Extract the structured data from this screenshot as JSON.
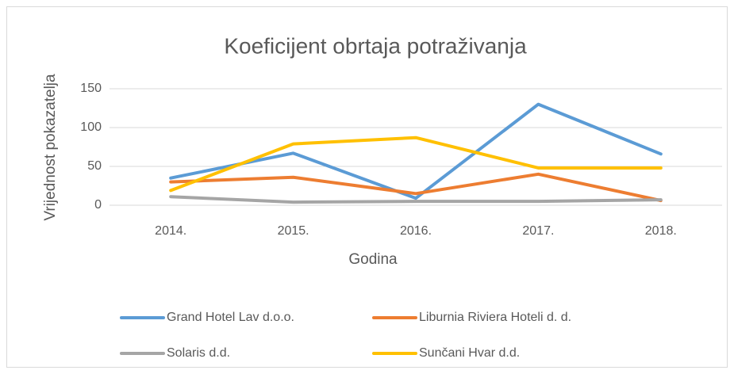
{
  "chart_data": {
    "type": "line",
    "title": "Koeficijent obrtaja potraživanja",
    "x_label": "Godina",
    "y_label": "Vrijednost pokazatelja",
    "categories": [
      "2014.",
      "2015.",
      "2016.",
      "2017.",
      "2018."
    ],
    "series": [
      {
        "name": "Grand Hotel Lav d.o.o.",
        "color": "#5b9bd5",
        "values": [
          35,
          67,
          9,
          130,
          66
        ]
      },
      {
        "name": "Liburnia Riviera Hoteli d. d.",
        "color": "#ed7d31",
        "values": [
          30,
          36,
          15,
          40,
          6
        ]
      },
      {
        "name": "Solaris d.d.",
        "color": "#a5a5a5",
        "values": [
          11,
          4,
          5,
          5,
          7
        ]
      },
      {
        "name": "Sunčani Hvar d.d.",
        "color": "#ffc000",
        "values": [
          19,
          79,
          87,
          48,
          48
        ]
      }
    ],
    "ylim": [
      0,
      150
    ],
    "yticks": [
      0,
      50,
      100,
      150
    ],
    "grid": true,
    "legend": "bottom"
  }
}
